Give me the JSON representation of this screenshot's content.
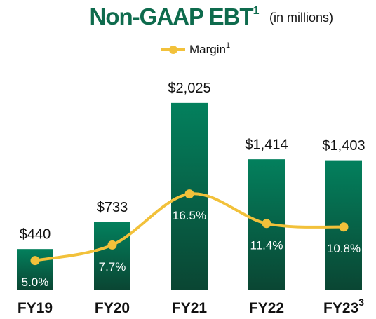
{
  "chart_data": {
    "type": "bar",
    "title": "Non-GAAP EBT",
    "title_superscript": "1",
    "subtitle": "(in millions)",
    "categories": [
      "FY19",
      "FY20",
      "FY21",
      "FY22",
      "FY23"
    ],
    "category_superscripts": [
      null,
      null,
      null,
      null,
      "3"
    ],
    "values": [
      440,
      733,
      2025,
      1414,
      1403
    ],
    "value_labels": [
      "$440",
      "$733",
      "$2,025",
      "$1,414",
      "$1,403"
    ],
    "color": "#03805d",
    "ylim": [
      0,
      2100
    ],
    "series": [
      {
        "name": "Margin",
        "name_superscript": "1",
        "type": "line",
        "axis": "y2",
        "color": "#f2c13a",
        "values": [
          5.0,
          7.7,
          16.5,
          11.4,
          10.8
        ],
        "value_labels": [
          "5.0%",
          "7.7%",
          "16.5%",
          "11.4%",
          "10.8%"
        ]
      }
    ],
    "y2lim": [
      0,
      33.4
    ]
  }
}
